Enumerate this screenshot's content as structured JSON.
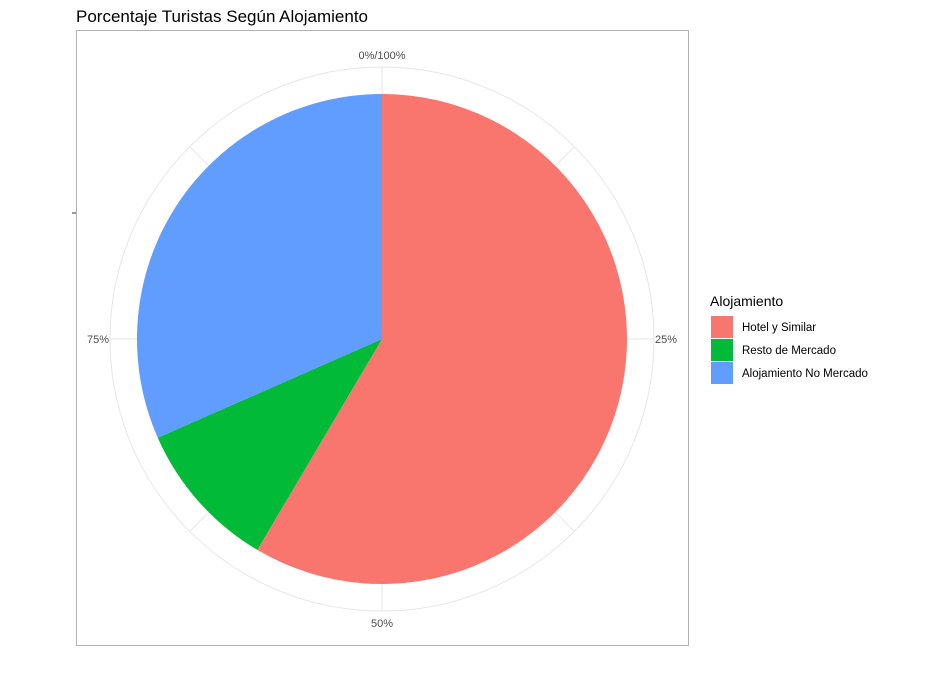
{
  "chart_data": {
    "type": "pie",
    "title": "Porcentaje Turistas Según Alojamiento",
    "legend_title": "Alojamiento",
    "legend_position": "right",
    "slices": [
      {
        "label": "Hotel y Similar",
        "value": 58.5,
        "color": "#F8766D"
      },
      {
        "label": "Resto de Mercado",
        "value": 9.9,
        "color": "#00BA38"
      },
      {
        "label": "Alojamiento No Mercado",
        "value": 31.6,
        "color": "#619CFF"
      }
    ],
    "theta_ticks": [
      {
        "label": "0%/100%",
        "value": 0
      },
      {
        "label": "25%",
        "value": 25
      },
      {
        "label": "50%",
        "value": 50
      },
      {
        "label": "75%",
        "value": 75
      }
    ],
    "direction": "counterclockwise",
    "grid": true
  }
}
